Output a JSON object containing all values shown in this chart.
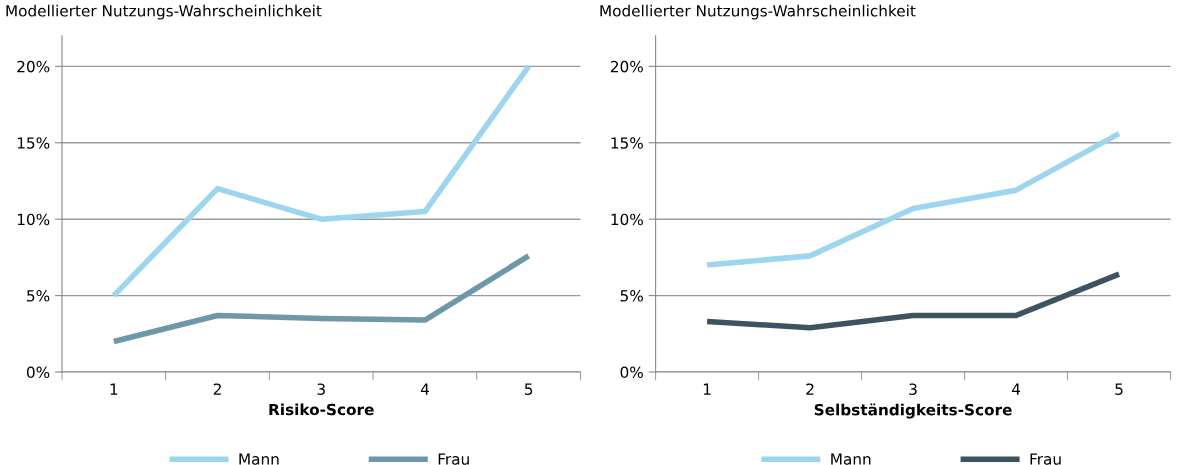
{
  "chart_data": [
    {
      "type": "line",
      "title": "Modellierter Nutzungs-Wahrscheinlichkeit",
      "xlabel": "Risiko-Score",
      "categories": [
        "1",
        "2",
        "3",
        "4",
        "5"
      ],
      "series": [
        {
          "name": "Mann",
          "color": "#9dd5ef",
          "values": [
            5.0,
            12.0,
            10.0,
            10.5,
            20.0
          ]
        },
        {
          "name": "Frau",
          "color": "#6e97a8",
          "values": [
            2.0,
            3.7,
            3.5,
            3.4,
            7.6
          ]
        }
      ],
      "ylim": [
        0,
        22
      ],
      "yticks": [
        {
          "value": 0,
          "label": "0%"
        },
        {
          "value": 5,
          "label": "5%"
        },
        {
          "value": 10,
          "label": "10%"
        },
        {
          "value": 15,
          "label": "15%"
        },
        {
          "value": 20,
          "label": "20%"
        }
      ],
      "grid": "y",
      "legend": "bottom",
      "marker": "none",
      "line_style": "solid"
    },
    {
      "type": "line",
      "title": "Modellierter Nutzungs-Wahrscheinlichkeit",
      "xlabel": "Selbständigkeits-Score",
      "categories": [
        "1",
        "2",
        "3",
        "4",
        "5"
      ],
      "series": [
        {
          "name": "Mann",
          "color": "#9dd5ef",
          "values": [
            7.0,
            7.6,
            10.7,
            11.9,
            15.6
          ]
        },
        {
          "name": "Frau",
          "color": "#3d5360",
          "values": [
            3.3,
            2.9,
            3.7,
            3.7,
            6.4
          ]
        }
      ],
      "ylim": [
        0,
        22
      ],
      "yticks": [
        {
          "value": 0,
          "label": "0%"
        },
        {
          "value": 5,
          "label": "5%"
        },
        {
          "value": 10,
          "label": "10%"
        },
        {
          "value": 15,
          "label": "15%"
        },
        {
          "value": 20,
          "label": "20%"
        }
      ],
      "grid": "y",
      "legend": "bottom",
      "marker": "none",
      "line_style": "solid"
    }
  ]
}
